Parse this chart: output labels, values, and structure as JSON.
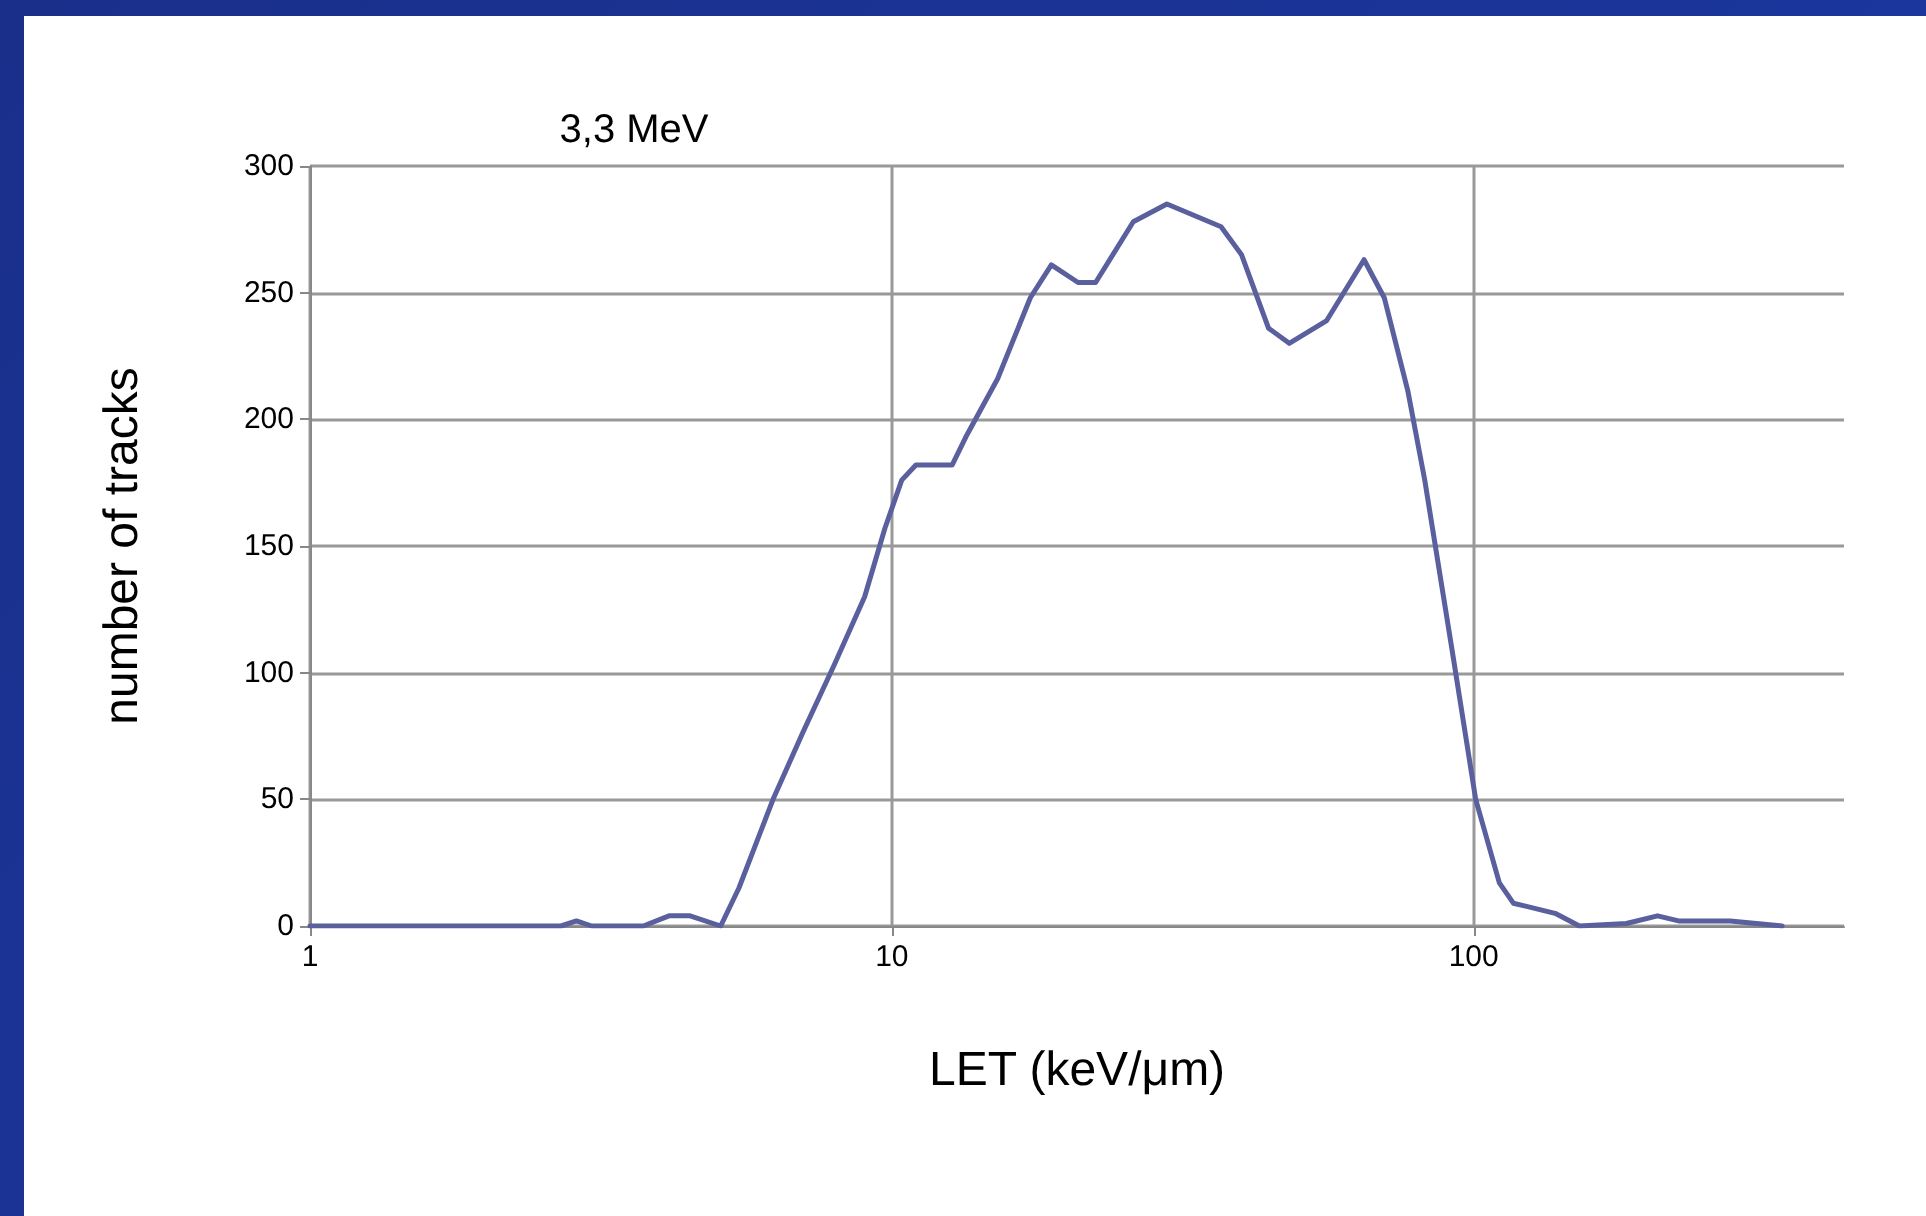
{
  "chart_data": {
    "type": "line",
    "title": "3,3 MeV",
    "xlabel": "LET (keV/μm)",
    "ylabel": "number of tracks",
    "log": "x",
    "grid": true,
    "marker": "none",
    "line_style": "solid",
    "xlim": [
      1,
      433
    ],
    "xticks": [
      1,
      10,
      100
    ],
    "ylim": [
      0,
      300
    ],
    "yticks": [
      0,
      50,
      100,
      150,
      200,
      250,
      300
    ],
    "series": [
      {
        "color": "#5a5f9e",
        "x": [
          1,
          2.7,
          2.87,
          3.05,
          3.74,
          4.14,
          4.5,
          5.08,
          5.46,
          6.25,
          7.05,
          7.96,
          8.98,
          9.73,
          10.4,
          11.0,
          12.7,
          13.4,
          15.2,
          17.3,
          18.8,
          20.9,
          22.4,
          26.0,
          29.7,
          36.8,
          39.9,
          44.4,
          48.2,
          55.9,
          64.8,
          70.2,
          77.1,
          82.4,
          91.8,
          100.8,
          110.7,
          117,
          138,
          152,
          183,
          207,
          225,
          276,
          339
        ],
        "values": [
          0,
          0,
          2,
          0,
          0,
          4,
          4,
          0,
          15,
          50,
          77,
          103,
          130,
          157,
          176,
          182,
          182,
          193,
          216,
          248,
          261,
          254,
          254,
          278,
          285,
          276,
          265,
          236,
          230,
          239,
          263,
          248,
          211,
          176,
          109,
          50,
          17,
          9,
          5,
          0,
          1,
          4,
          2,
          2,
          0
        ]
      }
    ]
  }
}
